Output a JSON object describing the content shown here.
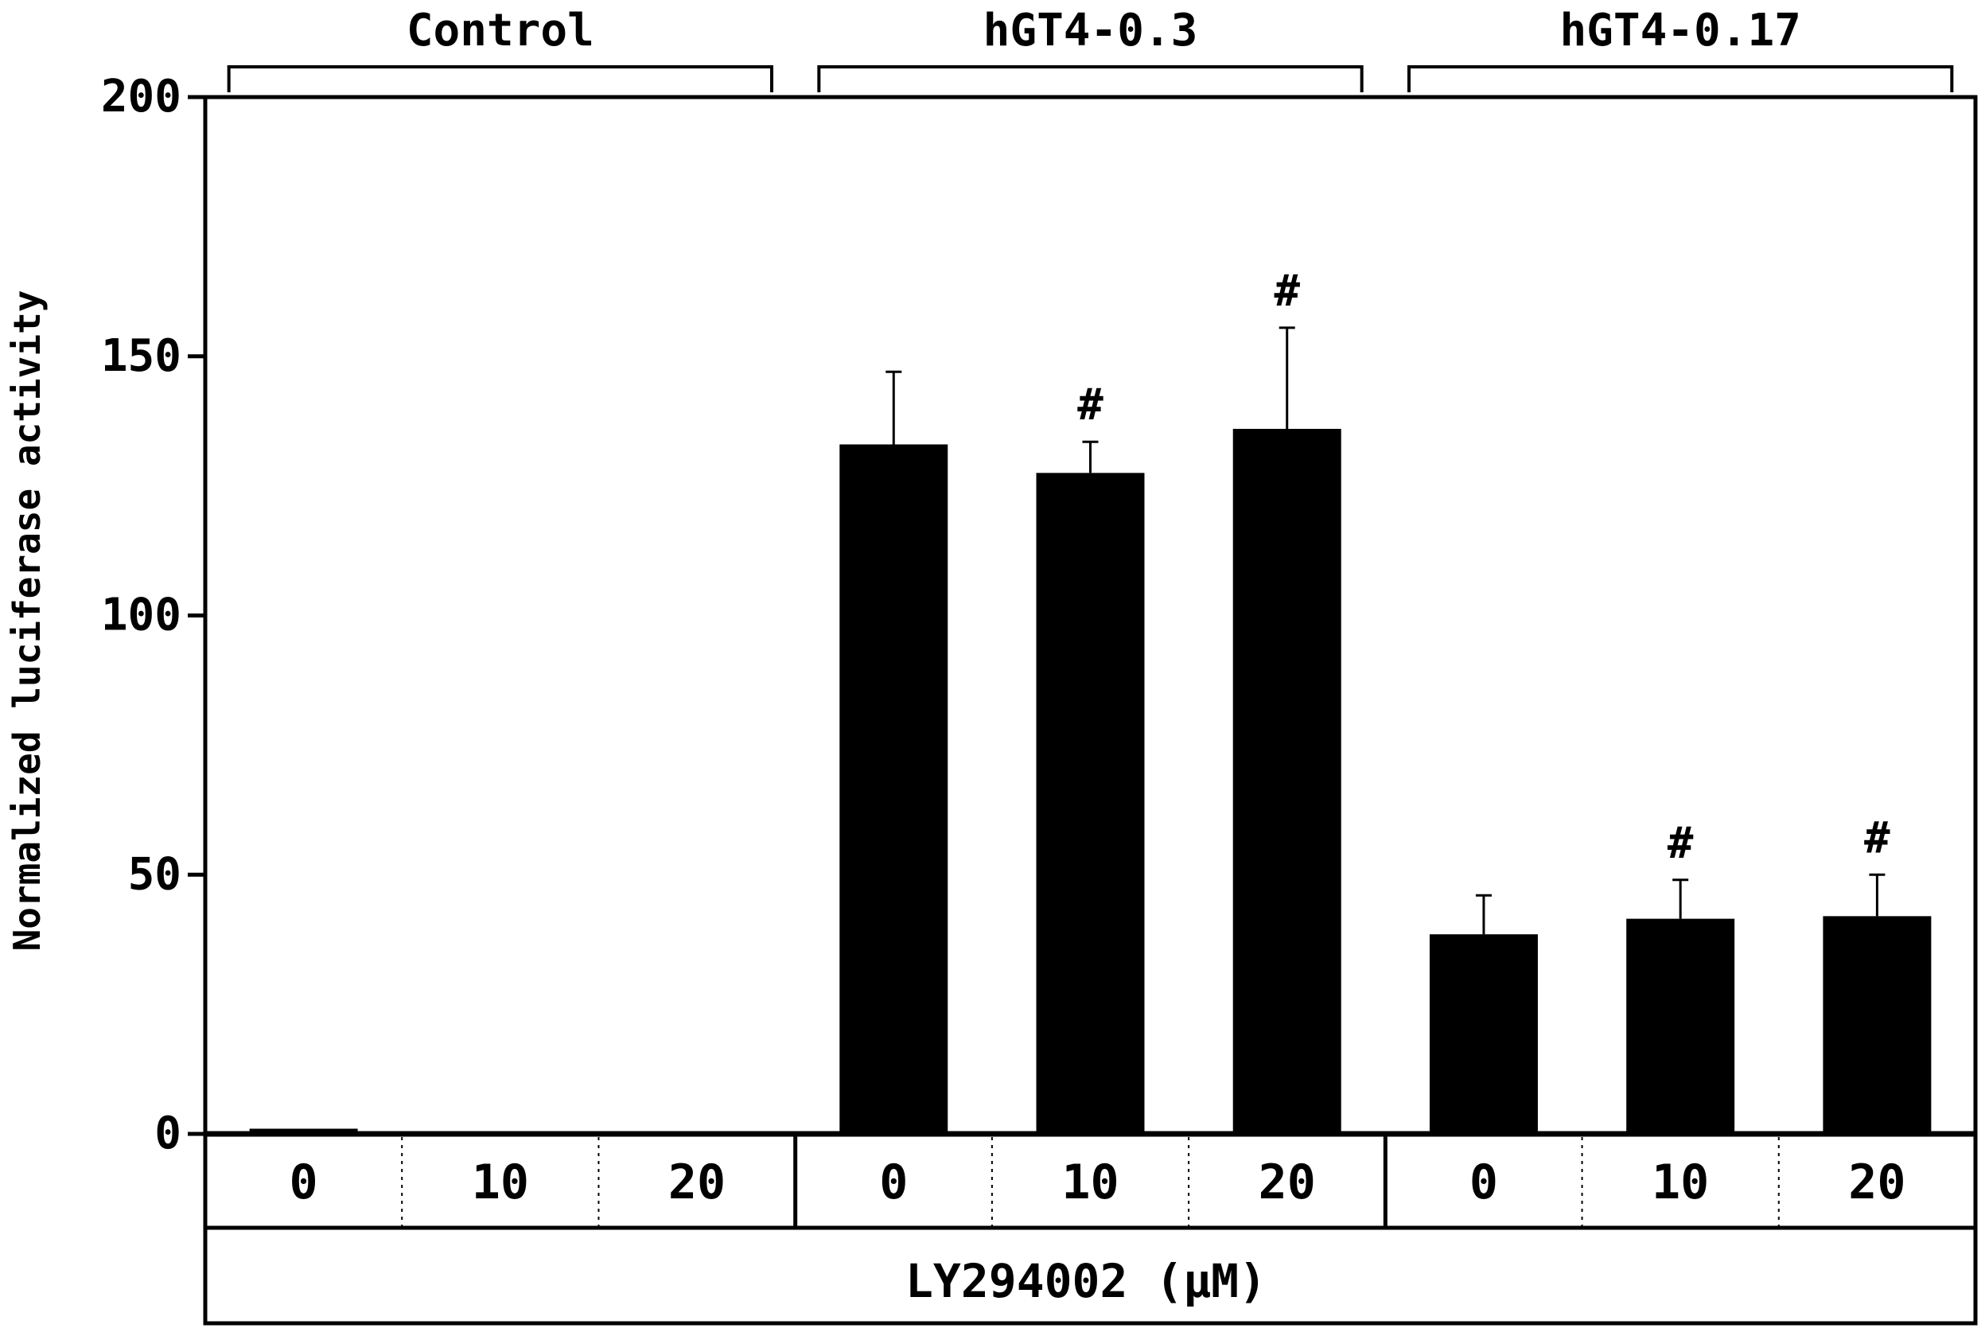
{
  "chart_data": {
    "type": "bar",
    "ylabel": "Normalized luciferase activity",
    "xlabel": "LY294002 (µM)",
    "ylim": [
      0,
      200
    ],
    "yticks": [
      "0",
      "50",
      "100",
      "150",
      "200"
    ],
    "ytick_values": [
      0,
      50,
      100,
      150,
      200
    ],
    "groups": [
      "Control",
      "hGT4-0.3",
      "hGT4-0.17"
    ],
    "categories": [
      "0",
      "10",
      "20"
    ],
    "series": [
      {
        "group": "Control",
        "values": [
          1.0,
          0.5,
          0.5
        ],
        "errors": [
          0,
          0,
          0
        ],
        "marks": [
          "",
          "",
          ""
        ]
      },
      {
        "group": "hGT4-0.3",
        "values": [
          133,
          127.5,
          136
        ],
        "errors": [
          14,
          6,
          19.5
        ],
        "marks": [
          "",
          "#",
          "#"
        ]
      },
      {
        "group": "hGT4-0.17",
        "values": [
          38.5,
          41.5,
          42
        ],
        "errors": [
          7.5,
          7.5,
          8
        ],
        "marks": [
          "",
          "#",
          "#"
        ]
      }
    ],
    "bar_color": "#000000",
    "grid": false,
    "legend": "none"
  }
}
